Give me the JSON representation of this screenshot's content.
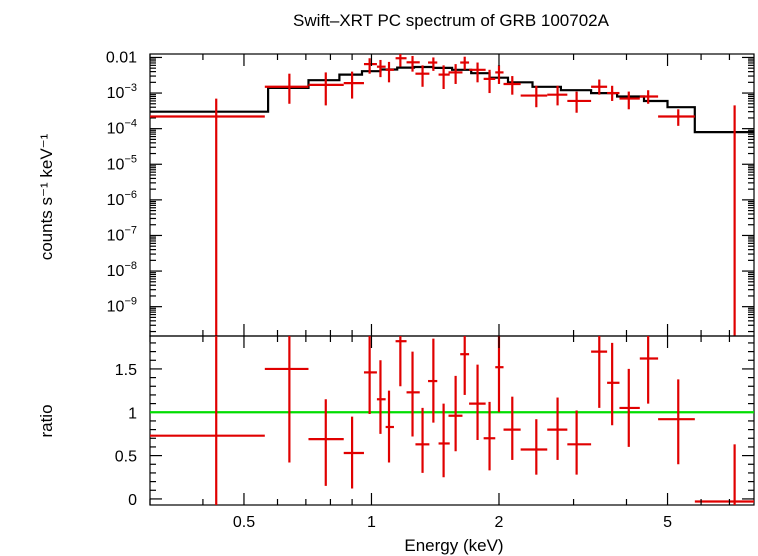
{
  "chart_data": {
    "type": "scatter",
    "title": "Swift–XRT PC spectrum of GRB 100702A",
    "xlabel": "Energy (keV)",
    "x_scale": "log",
    "xlim": [
      0.3,
      8.0
    ],
    "x_ticks": [
      {
        "value": 0.5,
        "label": "0.5"
      },
      {
        "value": 1,
        "label": "1"
      },
      {
        "value": 2,
        "label": "2"
      },
      {
        "value": 5,
        "label": "5"
      }
    ],
    "colors": {
      "data": "#e00000",
      "model": "#000000",
      "unity": "#00dd00"
    },
    "top_panel": {
      "ylabel": "counts s⁻¹ keV⁻¹",
      "y_scale": "log",
      "ylim": [
        1.5e-10,
        0.0125
      ],
      "y_tick_labels": [
        {
          "value": 0.01,
          "label": "0.01"
        },
        {
          "value": 0.001,
          "base": "10",
          "exp": "−3"
        },
        {
          "value": 0.0001,
          "base": "10",
          "exp": "−4"
        },
        {
          "value": 1e-05,
          "base": "10",
          "exp": "−5"
        },
        {
          "value": 1e-06,
          "base": "10",
          "exp": "−6"
        },
        {
          "value": 1e-07,
          "base": "10",
          "exp": "−7"
        },
        {
          "value": 1e-08,
          "base": "10",
          "exp": "−8"
        },
        {
          "value": 1e-09,
          "base": "10",
          "exp": "−9"
        }
      ],
      "data": [
        {
          "x": 0.43,
          "xlo": 0.3,
          "xhi": 0.56,
          "y": 0.00022,
          "ylo": 1e-12,
          "yhi": 0.0007
        },
        {
          "x": 0.64,
          "xlo": 0.56,
          "xhi": 0.71,
          "y": 0.0015,
          "ylo": 0.0005,
          "yhi": 0.0035
        },
        {
          "x": 0.78,
          "xlo": 0.71,
          "xhi": 0.86,
          "y": 0.0017,
          "ylo": 0.00045,
          "yhi": 0.0038
        },
        {
          "x": 0.9,
          "xlo": 0.86,
          "xhi": 0.96,
          "y": 0.0019,
          "ylo": 0.0007,
          "yhi": 0.004
        },
        {
          "x": 0.99,
          "xlo": 0.96,
          "xhi": 1.03,
          "y": 0.0065,
          "ylo": 0.0035,
          "yhi": 0.0095
        },
        {
          "x": 1.05,
          "xlo": 1.03,
          "xhi": 1.08,
          "y": 0.0055,
          "ylo": 0.0028,
          "yhi": 0.0085
        },
        {
          "x": 1.1,
          "xlo": 1.08,
          "xhi": 1.13,
          "y": 0.0045,
          "ylo": 0.002,
          "yhi": 0.0075
        },
        {
          "x": 1.17,
          "xlo": 1.14,
          "xhi": 1.21,
          "y": 0.0095,
          "ylo": 0.0055,
          "yhi": 0.014
        },
        {
          "x": 1.25,
          "xlo": 1.21,
          "xhi": 1.3,
          "y": 0.0073,
          "ylo": 0.004,
          "yhi": 0.011
        },
        {
          "x": 1.32,
          "xlo": 1.27,
          "xhi": 1.37,
          "y": 0.0035,
          "ylo": 0.0015,
          "yhi": 0.006
        },
        {
          "x": 1.4,
          "xlo": 1.36,
          "xhi": 1.43,
          "y": 0.0072,
          "ylo": 0.0042,
          "yhi": 0.01
        },
        {
          "x": 1.48,
          "xlo": 1.44,
          "xhi": 1.53,
          "y": 0.0033,
          "ylo": 0.0013,
          "yhi": 0.006
        },
        {
          "x": 1.58,
          "xlo": 1.52,
          "xhi": 1.64,
          "y": 0.0038,
          "ylo": 0.0018,
          "yhi": 0.0065
        },
        {
          "x": 1.66,
          "xlo": 1.62,
          "xhi": 1.7,
          "y": 0.0072,
          "ylo": 0.0045,
          "yhi": 0.0105
        },
        {
          "x": 1.78,
          "xlo": 1.7,
          "xhi": 1.86,
          "y": 0.0045,
          "ylo": 0.002,
          "yhi": 0.0072
        },
        {
          "x": 1.9,
          "xlo": 1.84,
          "xhi": 1.96,
          "y": 0.0025,
          "ylo": 0.001,
          "yhi": 0.0045
        },
        {
          "x": 2.0,
          "xlo": 1.96,
          "xhi": 2.05,
          "y": 0.0038,
          "ylo": 0.0018,
          "yhi": 0.006
        },
        {
          "x": 2.15,
          "xlo": 2.05,
          "xhi": 2.25,
          "y": 0.0018,
          "ylo": 0.0009,
          "yhi": 0.003
        },
        {
          "x": 2.45,
          "xlo": 2.25,
          "xhi": 2.6,
          "y": 0.00085,
          "ylo": 0.0004,
          "yhi": 0.0016
        },
        {
          "x": 2.75,
          "xlo": 2.6,
          "xhi": 2.9,
          "y": 0.0009,
          "ylo": 0.00045,
          "yhi": 0.0016
        },
        {
          "x": 3.05,
          "xlo": 2.9,
          "xhi": 3.3,
          "y": 0.0006,
          "ylo": 0.00028,
          "yhi": 0.0011
        },
        {
          "x": 3.45,
          "xlo": 3.3,
          "xhi": 3.6,
          "y": 0.0015,
          "ylo": 0.0009,
          "yhi": 0.0024
        },
        {
          "x": 3.7,
          "xlo": 3.6,
          "xhi": 3.85,
          "y": 0.001,
          "ylo": 0.0006,
          "yhi": 0.0016
        },
        {
          "x": 4.05,
          "xlo": 3.85,
          "xhi": 4.3,
          "y": 0.0007,
          "ylo": 0.00035,
          "yhi": 0.0011
        },
        {
          "x": 4.5,
          "xlo": 4.3,
          "xhi": 4.75,
          "y": 0.0008,
          "ylo": 0.0005,
          "yhi": 0.0012
        },
        {
          "x": 5.3,
          "xlo": 4.75,
          "xhi": 5.8,
          "y": 0.00022,
          "ylo": 0.00012,
          "yhi": 0.00035
        },
        {
          "x": 7.2,
          "xlo": 7.2,
          "xhi": 7.2,
          "y": 0.0001,
          "ylo": 1e-12,
          "yhi": 0.00045
        }
      ],
      "model": [
        {
          "x0": 0.3,
          "x1": 0.57,
          "y": 0.0003
        },
        {
          "x0": 0.57,
          "x1": 0.71,
          "y": 0.0014
        },
        {
          "x0": 0.71,
          "x1": 0.84,
          "y": 0.0023
        },
        {
          "x0": 0.84,
          "x1": 0.95,
          "y": 0.0033
        },
        {
          "x0": 0.95,
          "x1": 1.05,
          "y": 0.0041
        },
        {
          "x0": 1.05,
          "x1": 1.15,
          "y": 0.0046
        },
        {
          "x0": 1.15,
          "x1": 1.26,
          "y": 0.0052
        },
        {
          "x0": 1.26,
          "x1": 1.4,
          "y": 0.0054
        },
        {
          "x0": 1.4,
          "x1": 1.55,
          "y": 0.0051
        },
        {
          "x0": 1.55,
          "x1": 1.72,
          "y": 0.0045
        },
        {
          "x0": 1.72,
          "x1": 1.9,
          "y": 0.0036
        },
        {
          "x0": 1.9,
          "x1": 2.1,
          "y": 0.0027
        },
        {
          "x0": 2.1,
          "x1": 2.4,
          "y": 0.002
        },
        {
          "x0": 2.4,
          "x1": 2.8,
          "y": 0.0015
        },
        {
          "x0": 2.8,
          "x1": 3.3,
          "y": 0.0012
        },
        {
          "x0": 3.3,
          "x1": 3.8,
          "y": 0.001
        },
        {
          "x0": 3.8,
          "x1": 4.4,
          "y": 0.0008
        },
        {
          "x0": 4.4,
          "x1": 5.0,
          "y": 0.0006
        },
        {
          "x0": 5.0,
          "x1": 5.8,
          "y": 0.0004
        },
        {
          "x0": 5.8,
          "x1": 8.0,
          "y": 8e-05
        }
      ]
    },
    "bottom_panel": {
      "ylabel": "ratio",
      "ylim": [
        -0.07,
        1.88
      ],
      "y_ticks": [
        {
          "value": 0,
          "label": "0"
        },
        {
          "value": 0.5,
          "label": "0.5"
        },
        {
          "value": 1,
          "label": "1"
        },
        {
          "value": 1.5,
          "label": "1.5"
        }
      ],
      "reference_line": 1,
      "data": [
        {
          "x": 0.43,
          "xlo": 0.3,
          "xhi": 0.56,
          "y": 0.73,
          "ylo": -0.1,
          "yhi": 2.0
        },
        {
          "x": 0.64,
          "xlo": 0.56,
          "xhi": 0.71,
          "y": 1.5,
          "ylo": 0.42,
          "yhi": 2.0
        },
        {
          "x": 0.78,
          "xlo": 0.71,
          "xhi": 0.86,
          "y": 0.69,
          "ylo": 0.15,
          "yhi": 1.15
        },
        {
          "x": 0.9,
          "xlo": 0.86,
          "xhi": 0.96,
          "y": 0.53,
          "ylo": 0.12,
          "yhi": 0.95
        },
        {
          "x": 0.99,
          "xlo": 0.96,
          "xhi": 1.03,
          "y": 1.46,
          "ylo": 0.98,
          "yhi": 1.9
        },
        {
          "x": 1.05,
          "xlo": 1.03,
          "xhi": 1.08,
          "y": 1.15,
          "ylo": 0.75,
          "yhi": 1.6
        },
        {
          "x": 1.1,
          "xlo": 1.08,
          "xhi": 1.13,
          "y": 0.83,
          "ylo": 0.42,
          "yhi": 1.25
        },
        {
          "x": 1.17,
          "xlo": 1.14,
          "xhi": 1.21,
          "y": 1.82,
          "ylo": 1.3,
          "yhi": 2.0
        },
        {
          "x": 1.25,
          "xlo": 1.21,
          "xhi": 1.3,
          "y": 1.23,
          "ylo": 0.72,
          "yhi": 1.7
        },
        {
          "x": 1.32,
          "xlo": 1.27,
          "xhi": 1.37,
          "y": 0.63,
          "ylo": 0.3,
          "yhi": 1.05
        },
        {
          "x": 1.4,
          "xlo": 1.36,
          "xhi": 1.43,
          "y": 1.36,
          "ylo": 0.88,
          "yhi": 1.85
        },
        {
          "x": 1.48,
          "xlo": 1.44,
          "xhi": 1.53,
          "y": 0.64,
          "ylo": 0.25,
          "yhi": 1.1
        },
        {
          "x": 1.58,
          "xlo": 1.52,
          "xhi": 1.64,
          "y": 0.96,
          "ylo": 0.55,
          "yhi": 1.42
        },
        {
          "x": 1.66,
          "xlo": 1.62,
          "xhi": 1.7,
          "y": 1.67,
          "ylo": 1.2,
          "yhi": 2.0
        },
        {
          "x": 1.78,
          "xlo": 1.7,
          "xhi": 1.86,
          "y": 1.1,
          "ylo": 0.68,
          "yhi": 1.55
        },
        {
          "x": 1.9,
          "xlo": 1.84,
          "xhi": 1.96,
          "y": 0.7,
          "ylo": 0.33,
          "yhi": 1.12
        },
        {
          "x": 2.0,
          "xlo": 1.96,
          "xhi": 2.05,
          "y": 1.52,
          "ylo": 1.0,
          "yhi": 2.0
        },
        {
          "x": 2.15,
          "xlo": 2.05,
          "xhi": 2.25,
          "y": 0.8,
          "ylo": 0.45,
          "yhi": 1.18
        },
        {
          "x": 2.45,
          "xlo": 2.25,
          "xhi": 2.6,
          "y": 0.57,
          "ylo": 0.28,
          "yhi": 0.92
        },
        {
          "x": 2.75,
          "xlo": 2.6,
          "xhi": 2.9,
          "y": 0.8,
          "ylo": 0.45,
          "yhi": 1.17
        },
        {
          "x": 3.05,
          "xlo": 2.9,
          "xhi": 3.3,
          "y": 0.63,
          "ylo": 0.28,
          "yhi": 1.02
        },
        {
          "x": 3.45,
          "xlo": 3.3,
          "xhi": 3.6,
          "y": 1.7,
          "ylo": 1.05,
          "yhi": 2.0
        },
        {
          "x": 3.7,
          "xlo": 3.6,
          "xhi": 3.85,
          "y": 1.34,
          "ylo": 0.85,
          "yhi": 1.8
        },
        {
          "x": 4.05,
          "xlo": 3.85,
          "xhi": 4.3,
          "y": 1.05,
          "ylo": 0.6,
          "yhi": 1.5
        },
        {
          "x": 4.5,
          "xlo": 4.3,
          "xhi": 4.75,
          "y": 1.62,
          "ylo": 1.1,
          "yhi": 2.0
        },
        {
          "x": 5.3,
          "xlo": 4.75,
          "xhi": 5.8,
          "y": 0.92,
          "ylo": 0.4,
          "yhi": 1.38
        },
        {
          "x": 7.2,
          "xlo": 5.8,
          "xhi": 8.0,
          "y": -0.03,
          "ylo": -0.1,
          "yhi": 0.63
        }
      ]
    }
  }
}
